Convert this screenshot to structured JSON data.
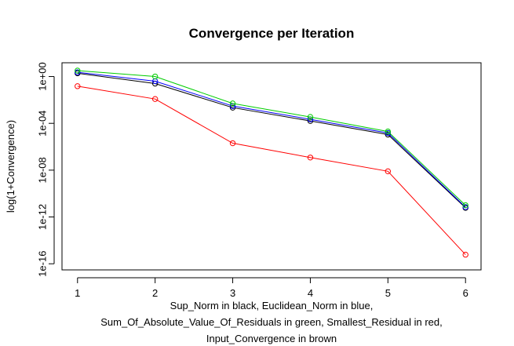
{
  "chart_data": {
    "type": "line",
    "title": "Convergence per Iteration",
    "ylabel": "log(1+Convergence)",
    "xlabel_lines": [
      "Sup_Norm in black, Euclidean_Norm in blue,",
      "Sum_Of_Absolute_Value_Of_Residuals in green, Smallest_Residual in red,",
      "Input_Convergence in brown"
    ],
    "x": [
      1,
      2,
      3,
      4,
      5,
      6
    ],
    "x_ticks": [
      "1",
      "2",
      "3",
      "4",
      "5",
      "6"
    ],
    "y_scale": "log10",
    "y_ticks": [
      "1e-16",
      "1e-12",
      "1e-08",
      "1e-04",
      "1e+00"
    ],
    "y_tick_values": [
      1e-16,
      1e-12,
      1e-08,
      0.0001,
      1
    ],
    "xlim": [
      0.8,
      6.2
    ],
    "ylim": [
      3e-17,
      15
    ],
    "grid": false,
    "series": [
      {
        "name": "Smallest_Residual",
        "color": "#ff0000",
        "values": [
          0.15,
          0.012,
          2e-06,
          1.2e-07,
          8e-09,
          6e-16
        ]
      },
      {
        "name": "Sup_Norm",
        "color": "#000000",
        "values": [
          1.9,
          0.25,
          0.0022,
          0.00016,
          1.1e-05,
          6e-12
        ]
      },
      {
        "name": "Euclidean_Norm",
        "color": "#0000ff",
        "values": [
          2.3,
          0.4,
          0.003,
          0.00022,
          1.5e-05,
          7e-12
        ]
      },
      {
        "name": "Sum_Of_Absolute_Value_Of_Residuals",
        "color": "#00cc00",
        "values": [
          3.2,
          1.0,
          0.005,
          0.00035,
          2e-05,
          1e-11
        ]
      }
    ]
  }
}
